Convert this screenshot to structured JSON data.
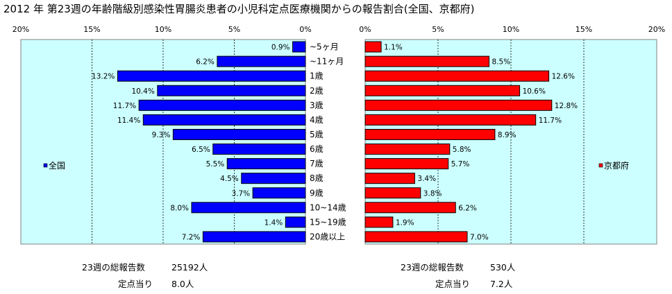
{
  "title": "2012 年 第23週の年齢階級別感染性胃腸炎患者の小児科定点医療機関からの報告割合(全国、京都府)",
  "chart_data": {
    "type": "bar",
    "orientation": "horizontal",
    "layout": "back-to-back",
    "categories": [
      "~5ヶ月",
      "~11ヶ月",
      "1歳",
      "2歳",
      "3歳",
      "4歳",
      "5歳",
      "6歳",
      "7歳",
      "8歳",
      "9歳",
      "10~14歳",
      "15~19歳",
      "20歳以上"
    ],
    "xlim": [
      0,
      20
    ],
    "x_ticks": [
      "20%",
      "15%",
      "10%",
      "5%",
      "0%"
    ],
    "x_ticks_right": [
      "0%",
      "5%",
      "10%",
      "15%",
      "20%"
    ],
    "grid": true,
    "plot_background": "#ccffff",
    "series": [
      {
        "name": "全国",
        "color": "#0000ff",
        "values": [
          0.9,
          6.2,
          13.2,
          10.4,
          11.7,
          11.4,
          9.3,
          6.5,
          5.5,
          4.5,
          3.7,
          8.0,
          1.4,
          7.2
        ],
        "labels": [
          "0.9%",
          "6.2%",
          "13.2%",
          "10.4%",
          "11.7%",
          "11.4%",
          "9.3%",
          "6.5%",
          "5.5%",
          "4.5%",
          "3.7%",
          "8.0%",
          "1.4%",
          "7.2%"
        ],
        "legend_position": "inside-left"
      },
      {
        "name": "京都府",
        "color": "#ff0000",
        "values": [
          1.1,
          8.5,
          12.6,
          10.6,
          12.8,
          11.7,
          8.9,
          5.8,
          5.7,
          3.4,
          3.8,
          6.2,
          1.9,
          7.0
        ],
        "labels": [
          "1.1%",
          "8.5%",
          "12.6%",
          "10.6%",
          "12.8%",
          "11.7%",
          "8.9%",
          "5.8%",
          "5.7%",
          "3.4%",
          "3.8%",
          "6.2%",
          "1.9%",
          "7.0%"
        ],
        "legend_position": "inside-right"
      }
    ]
  },
  "footer": {
    "national": {
      "total_label": "23週の総報告数",
      "total_value": "25192人",
      "per_site_label": "定点当り",
      "per_site_value": "8.0人"
    },
    "kyoto": {
      "total_label": "23週の総報告数",
      "total_value": "530人",
      "per_site_label": "定点当り",
      "per_site_value": "7.2人"
    }
  }
}
